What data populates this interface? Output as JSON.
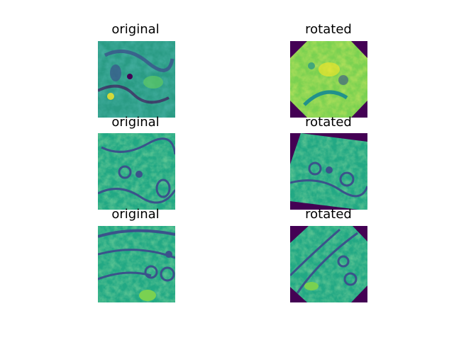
{
  "figure": {
    "panels": [
      {
        "title": "original",
        "kind": "original",
        "rotation_deg": 0
      },
      {
        "title": "rotated",
        "kind": "rotated",
        "rotation_deg": 45
      },
      {
        "title": "original",
        "kind": "original",
        "rotation_deg": 0
      },
      {
        "title": "rotated",
        "kind": "rotated",
        "rotation_deg": -15
      },
      {
        "title": "original",
        "kind": "original",
        "rotation_deg": 0
      },
      {
        "title": "rotated",
        "kind": "rotated",
        "rotation_deg": 40
      }
    ],
    "colormap": {
      "name": "viridis",
      "background": "#440154",
      "colors": [
        "#440154",
        "#3b528b",
        "#21918c",
        "#5ec962",
        "#fde725"
      ]
    }
  }
}
